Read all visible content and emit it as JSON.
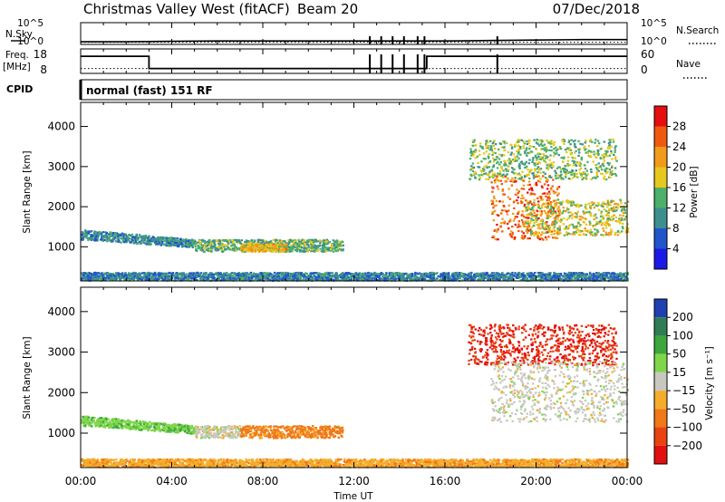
{
  "header": {
    "station": "Christmas Valley West (fitACF)",
    "beam": "Beam 20",
    "date": "07/Dec/2018"
  },
  "labels": {
    "nsky": "N.Sky",
    "nsearch": "N.Search",
    "freq_line1": "Freq.",
    "freq_line2": "[MHz]",
    "nave": "Nave",
    "cpid": "CPID",
    "cpid_value": "normal (fast) 151 RF",
    "slant_range": "Slant Range [km]",
    "time_axis": "Time UT"
  },
  "chart_data": [
    {
      "type": "line",
      "panel": "noise",
      "left_axis": "N.Sky",
      "right_axis": "N.Search",
      "ytick_labels": [
        "10^5",
        "10^0"
      ],
      "y_log": true,
      "series": [
        {
          "name": "N.Sky",
          "style": "solid",
          "x_hours": [
            0,
            2,
            4,
            6,
            8,
            10,
            12,
            14,
            16,
            18,
            20,
            22,
            24
          ],
          "log10_values": [
            0.6,
            0.6,
            0.7,
            0.8,
            0.8,
            0.8,
            0.8,
            0.8,
            0.8,
            0.9,
            1.0,
            1.1,
            1.1
          ]
        },
        {
          "name": "N.Search",
          "style": "dotted",
          "x_hours": [
            0,
            24
          ],
          "log10_values": [
            0.5,
            0.5
          ]
        }
      ],
      "dropouts_hours": [
        12.7,
        13.2,
        13.7,
        14.2,
        14.8,
        15.1,
        18.3
      ],
      "xlim": [
        0,
        24
      ]
    },
    {
      "type": "line",
      "panel": "frequency",
      "left_axis": "Freq. [MHz]",
      "right_axis": "Nave",
      "left_ticks": [
        8,
        18
      ],
      "right_ticks": [
        0,
        60
      ],
      "series": [
        {
          "name": "Freq.",
          "style": "solid",
          "steps": [
            [
              0,
              15
            ],
            [
              3.0,
              10
            ],
            [
              15.2,
              15
            ],
            [
              24,
              15
            ]
          ]
        },
        {
          "name": "Nave",
          "style": "dotted",
          "steps": [
            [
              0,
              12
            ],
            [
              24,
              12
            ]
          ]
        }
      ],
      "dropouts_hours": [
        12.7,
        13.2,
        13.7,
        14.2,
        14.8,
        15.1,
        18.3
      ],
      "xlim": [
        0,
        24
      ]
    },
    {
      "type": "heatmap",
      "panel": "power",
      "ylabel": "Slant Range [km]",
      "yticks": [
        1000,
        2000,
        3000,
        4000
      ],
      "ylim": [
        150,
        4600
      ],
      "xlim": [
        0,
        24
      ],
      "colorbar": {
        "label": "Power [dB]",
        "ticks": [
          4,
          8,
          12,
          16,
          20,
          24,
          28
        ],
        "vmin": 0,
        "vmax": 32,
        "colors": [
          "#1a1ae6",
          "#2255cc",
          "#3d8f8f",
          "#4caf6a",
          "#e6c81e",
          "#f29a1a",
          "#f05a0f",
          "#e60f0f"
        ]
      },
      "regions": [
        {
          "t": [
            0.0,
            5.0
          ],
          "r": [
            900,
            1500
          ],
          "value_db": 10,
          "desc": "band descending in range"
        },
        {
          "t": [
            5.0,
            11.5
          ],
          "r": [
            900,
            1200
          ],
          "value_db": 13
        },
        {
          "t": [
            7.0,
            9.0
          ],
          "r": [
            900,
            1100
          ],
          "value_db": 20
        },
        {
          "t": [
            0.0,
            24.0
          ],
          "r": [
            180,
            380
          ],
          "value_db": 9
        },
        {
          "t": [
            18.0,
            21.0
          ],
          "r": [
            1200,
            2800
          ],
          "value_db": 25,
          "desc": "high-power arc"
        },
        {
          "t": [
            19.5,
            24.0
          ],
          "r": [
            1300,
            2200
          ],
          "value_db": 18
        },
        {
          "t": [
            17.0,
            23.5
          ],
          "r": [
            2700,
            3700
          ],
          "value_db": 15
        }
      ]
    },
    {
      "type": "heatmap",
      "panel": "velocity",
      "ylabel": "Slant Range [km]",
      "yticks": [
        1000,
        2000,
        3000,
        4000
      ],
      "ylim": [
        150,
        4600
      ],
      "xlim": [
        0,
        24
      ],
      "colorbar": {
        "label": "Velocity [m s⁻¹]",
        "tick_labels": [
          "200",
          "100",
          "50",
          "15",
          "−15",
          "−50",
          "−100",
          "−200"
        ],
        "colors": [
          "#1f3fb3",
          "#2e7d55",
          "#3da63d",
          "#7fd64a",
          "#c8c8c0",
          "#f4ad2a",
          "#f07818",
          "#e8420f",
          "#e01010"
        ]
      },
      "regions": [
        {
          "t": [
            0.0,
            5.0
          ],
          "r": [
            900,
            1500
          ],
          "value_ms": 40
        },
        {
          "t": [
            5.0,
            7.0
          ],
          "r": [
            900,
            1200
          ],
          "value_ms": 0
        },
        {
          "t": [
            7.0,
            11.5
          ],
          "r": [
            900,
            1200
          ],
          "value_ms": -60
        },
        {
          "t": [
            0.0,
            24.0
          ],
          "r": [
            180,
            380
          ],
          "value_ms": -40
        },
        {
          "t": [
            17.0,
            23.5
          ],
          "r": [
            2700,
            3700
          ],
          "value_ms": -200
        },
        {
          "t": [
            18.0,
            24.0
          ],
          "r": [
            1300,
            2800
          ],
          "value_ms": 0
        }
      ]
    }
  ],
  "xaxis": {
    "tick_labels": [
      "00:00",
      "04:00",
      "08:00",
      "12:00",
      "16:00",
      "20:00",
      "00:00"
    ],
    "tick_hours": [
      0,
      4,
      8,
      12,
      16,
      20,
      24
    ]
  }
}
